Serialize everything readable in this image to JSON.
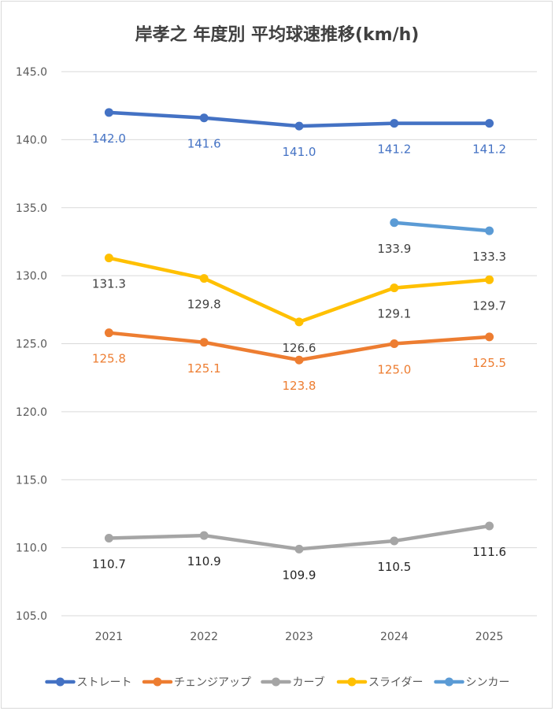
{
  "chart_data": {
    "type": "line",
    "title": "岸孝之 年度別 平均球速推移(km/h)",
    "categories": [
      "2021",
      "2022",
      "2023",
      "2024",
      "2025"
    ],
    "ylim": [
      105.0,
      145.0
    ],
    "yticks": [
      "105.0",
      "110.0",
      "115.0",
      "120.0",
      "125.0",
      "130.0",
      "135.0",
      "140.0",
      "145.0"
    ],
    "grid": true,
    "legend_position": "bottom",
    "series": [
      {
        "name": "ストレート",
        "color": "#4472c4",
        "label_color": "#4472c4",
        "label_pos": "below",
        "values": [
          142.0,
          141.6,
          141.0,
          141.2,
          141.2
        ],
        "labels": [
          "142.0",
          "141.6",
          "141.0",
          "141.2",
          "141.2"
        ]
      },
      {
        "name": "チェンジアップ",
        "color": "#ed7d31",
        "label_color": "#ed7d31",
        "label_pos": "below",
        "values": [
          125.8,
          125.1,
          123.8,
          125.0,
          125.5
        ],
        "labels": [
          "125.8",
          "125.1",
          "123.8",
          "125.0",
          "125.5"
        ]
      },
      {
        "name": "カーブ",
        "color": "#a5a5a5",
        "label_color": "#262626",
        "label_pos": "below",
        "values": [
          110.7,
          110.9,
          109.9,
          110.5,
          111.6
        ],
        "labels": [
          "110.7",
          "110.9",
          "109.9",
          "110.5",
          "111.6"
        ]
      },
      {
        "name": "スライダー",
        "color": "#ffc000",
        "label_color": "#404040",
        "label_pos": "below",
        "values": [
          131.3,
          129.8,
          126.6,
          129.1,
          129.7
        ],
        "labels": [
          "131.3",
          "129.8",
          "126.6",
          "129.1",
          "129.7"
        ]
      },
      {
        "name": "シンカー",
        "color": "#5b9bd5",
        "label_color": "#404040",
        "label_pos": "below",
        "values": [
          null,
          null,
          null,
          133.9,
          133.3
        ],
        "labels": [
          null,
          null,
          null,
          "133.9",
          "133.3"
        ]
      }
    ]
  }
}
